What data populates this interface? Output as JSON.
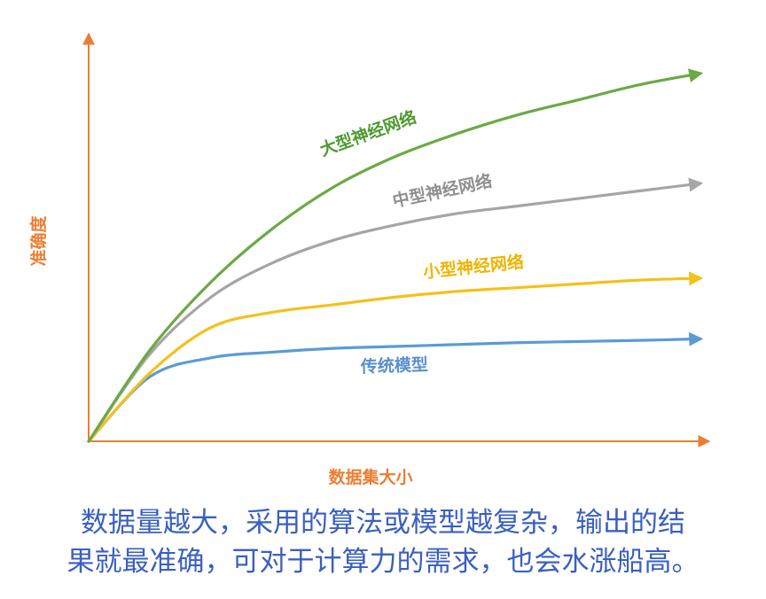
{
  "chart_data": {
    "type": "line",
    "title": "",
    "xlabel": "数据集大小",
    "ylabel": "准确度",
    "xlim": [
      0,
      100
    ],
    "ylim": [
      0,
      100
    ],
    "grid": false,
    "legend": "inline labels",
    "axis_color": "#ed7d31",
    "x": [
      0,
      10,
      20,
      30,
      40,
      50,
      60,
      70,
      80,
      90,
      100
    ],
    "series": [
      {
        "name": "大型神经网络",
        "color": "#6aaa44",
        "label_color": "#4e9a2e",
        "values": [
          0,
          24,
          42,
          56,
          67,
          75,
          81,
          86,
          90,
          94,
          97
        ]
      },
      {
        "name": "中型神经网络",
        "color": "#a5a5a5",
        "label_color": "#8f8f8f",
        "values": [
          0,
          23,
          38,
          47,
          53,
          57,
          60,
          62,
          64,
          66,
          68
        ]
      },
      {
        "name": "小型神经网络",
        "color": "#f5c01a",
        "label_color": "#f0b400",
        "values": [
          0,
          18,
          30,
          34,
          36,
          38,
          39.5,
          40.5,
          41.5,
          42.5,
          43
        ]
      },
      {
        "name": "传统模型",
        "color": "#5b9bd5",
        "label_color": "#5b8fd0",
        "values": [
          0,
          17,
          22,
          23.5,
          24.5,
          25,
          25.5,
          26,
          26.3,
          26.6,
          27
        ]
      }
    ]
  },
  "caption": {
    "line1": "数据量越大，采用的算法或模型越复杂，输出的结",
    "line2": "果就最准确，可对于计算力的需求，也会水涨船高。"
  }
}
